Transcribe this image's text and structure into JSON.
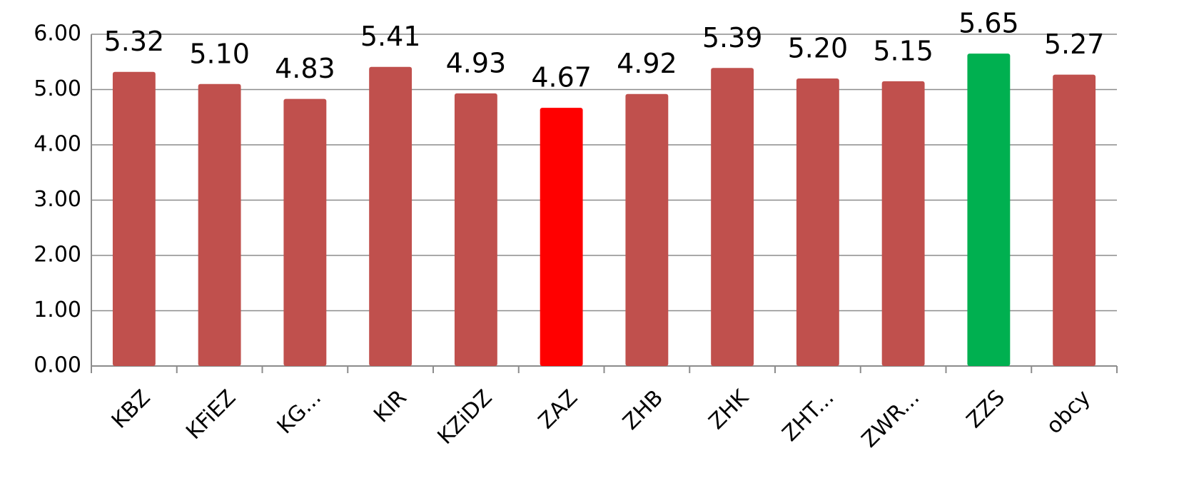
{
  "chart_data": {
    "type": "bar",
    "categories": [
      "KBZ",
      "KFiEZ",
      "KG...",
      "KIR",
      "KZiDZ",
      "ZAZ",
      "ZHB",
      "ZHK",
      "ZHT...",
      "ZWR...",
      "ZZS",
      "obcy"
    ],
    "values": [
      5.32,
      5.1,
      4.83,
      5.41,
      4.93,
      4.67,
      4.92,
      5.39,
      5.2,
      5.15,
      5.65,
      5.27
    ],
    "value_labels": [
      "5.32",
      "5.10",
      "4.83",
      "5.41",
      "4.93",
      "4.67",
      "4.92",
      "5.39",
      "5.20",
      "5.15",
      "5.65",
      "5.27"
    ],
    "colors": [
      "#c0504d",
      "#c0504d",
      "#c0504d",
      "#c0504d",
      "#c0504d",
      "#ff0000",
      "#c0504d",
      "#c0504d",
      "#c0504d",
      "#c0504d",
      "#00b050",
      "#c0504d"
    ],
    "ylim": [
      0,
      6
    ],
    "yticks": [
      {
        "value": 0,
        "label": "0.00"
      },
      {
        "value": 1,
        "label": "1.00"
      },
      {
        "value": 2,
        "label": "2.00"
      },
      {
        "value": 3,
        "label": "3.00"
      },
      {
        "value": 4,
        "label": "4.00"
      },
      {
        "value": 5,
        "label": "5.00"
      },
      {
        "value": 6,
        "label": "6.00"
      }
    ],
    "grid": true
  }
}
